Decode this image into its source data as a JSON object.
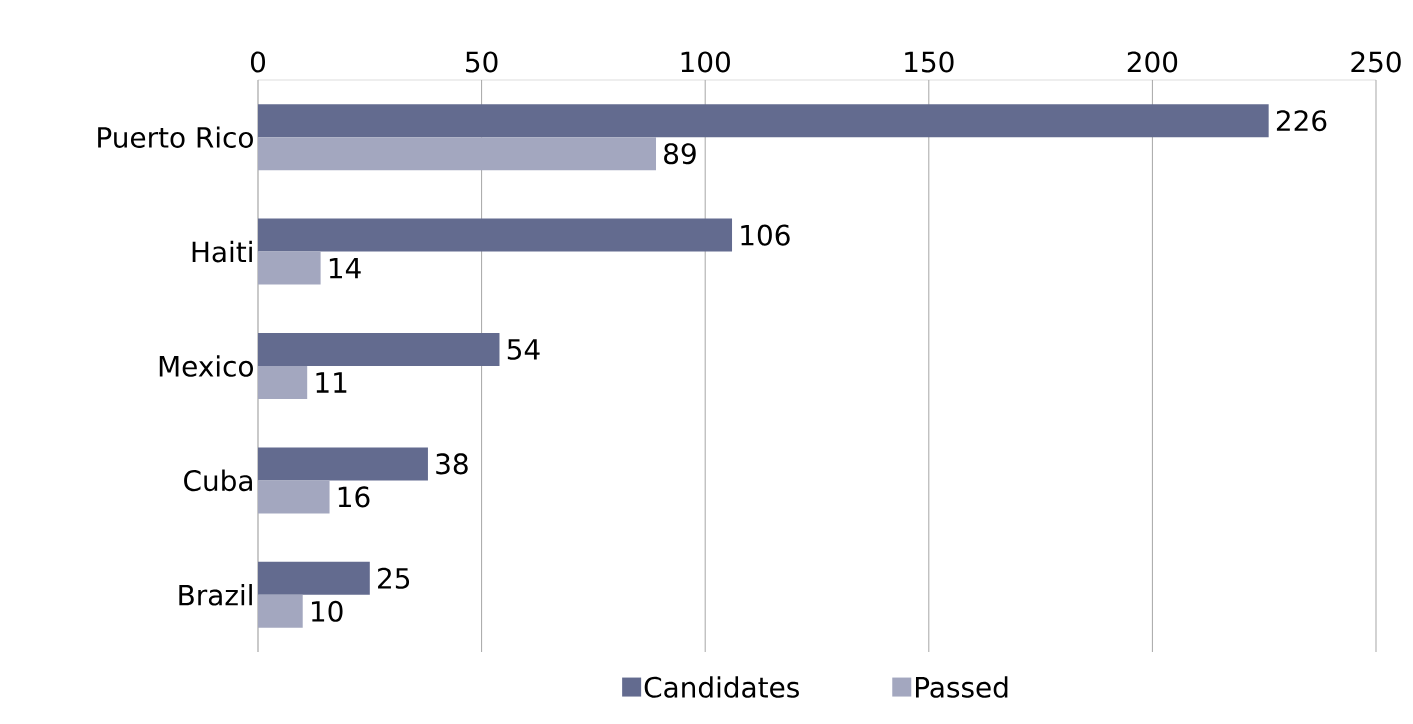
{
  "chart_data": {
    "type": "bar",
    "orientation": "horizontal",
    "categories": [
      "Puerto Rico",
      "Haiti",
      "Mexico",
      "Cuba",
      "Brazil"
    ],
    "series": [
      {
        "name": "Candidates",
        "color": "#636b8f",
        "values": [
          226,
          106,
          54,
          38,
          25
        ]
      },
      {
        "name": "Passed",
        "color": "#a3a7bf",
        "values": [
          89,
          14,
          11,
          16,
          10
        ]
      }
    ],
    "xlim": [
      0,
      250
    ],
    "xticks": [
      0,
      50,
      100,
      150,
      200,
      250
    ],
    "grid": "x",
    "legend": "bottom",
    "data_labels": true
  }
}
